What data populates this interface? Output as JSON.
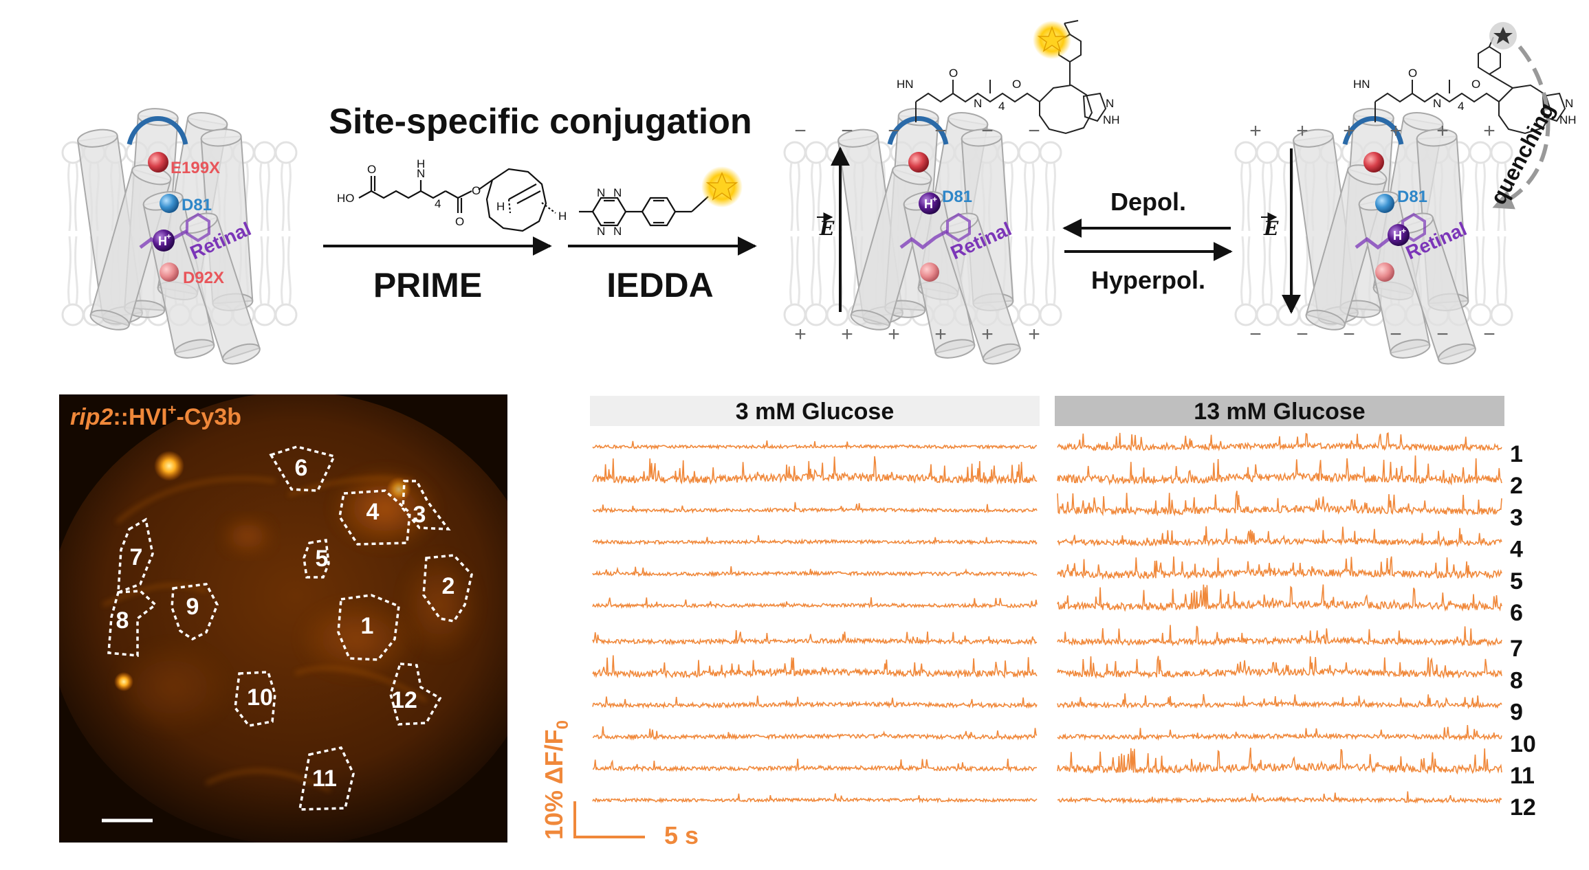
{
  "scheme": {
    "title": "Site-specific conjugation",
    "step1": "PRIME",
    "step2": "IEDDA",
    "depol": "Depol.",
    "hyperpol": "Hyperpol.",
    "quenching": "quenching",
    "e_field": "E",
    "residue_e199x": "E199X",
    "residue_d81": "D81",
    "residue_d92x": "D92X",
    "retinal": "Retinal",
    "proton": "H",
    "proton_sup": "+",
    "chem_labels": [
      "HO",
      "O",
      "N",
      "H",
      "4",
      "O",
      "O",
      "H",
      "H",
      "N",
      "N",
      "N",
      "N",
      "HN",
      "HN",
      "O",
      "N",
      "H",
      "4",
      "O",
      "O",
      "N",
      "NH"
    ],
    "membrane_minus": "−",
    "membrane_plus": "+",
    "colors": {
      "e199x": "#e8555a",
      "d81": "#2e86c8",
      "retinal": "#7b35b8",
      "loop": "#2a6aa8",
      "trace": "#f0883a",
      "arrow": "#111111"
    }
  },
  "micrograph": {
    "label_italic": "rip2",
    "label_rest": "::HVI",
    "label_sup": "+",
    "label_tail": "-Cy3b",
    "rois": [
      "1",
      "2",
      "3",
      "4",
      "5",
      "6",
      "7",
      "8",
      "9",
      "10",
      "11",
      "12"
    ]
  },
  "traces": {
    "panel_left": "3 mM Glucose",
    "panel_right": "13 mM Glucose",
    "cell_ids": [
      "1",
      "2",
      "3",
      "4",
      "5",
      "6",
      "7",
      "8",
      "9",
      "10",
      "11",
      "12"
    ],
    "scalebar_y": "10% ΔF/F",
    "scalebar_y_sub": "0",
    "scalebar_x": "5 s",
    "activity_low": [
      0.15,
      0.9,
      0.2,
      0.2,
      0.25,
      0.2,
      0.35,
      0.7,
      0.35,
      0.3,
      0.3,
      0.15
    ],
    "activity_high": [
      0.6,
      0.95,
      0.8,
      0.55,
      0.8,
      0.85,
      0.65,
      0.75,
      0.35,
      0.35,
      0.85,
      0.3
    ]
  }
}
